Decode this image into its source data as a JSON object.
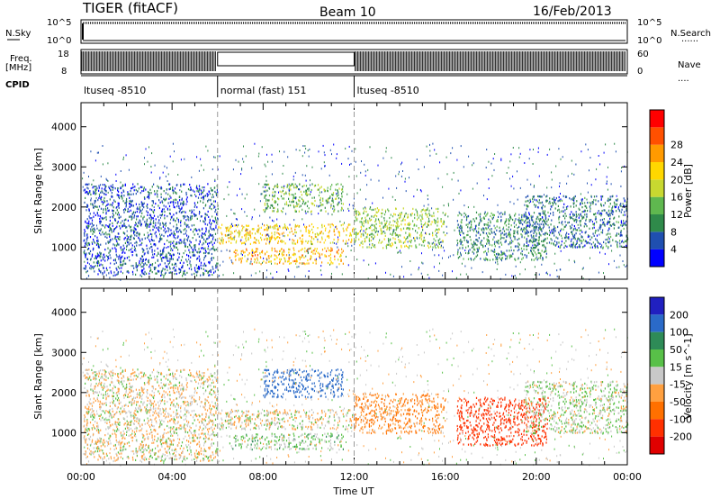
{
  "header": {
    "title": "TIGER (fitACF)",
    "beam": "Beam 10",
    "date": "16/Feb/2013"
  },
  "strip_labels": {
    "nsky": "N.Sky",
    "nsearch": "N.Search",
    "freq_l1": "Freq.",
    "freq_l2": "[MHz]",
    "nave": "Nave",
    "cpid": "CPID",
    "dots6": "......",
    "dots4": "...."
  },
  "strips": {
    "nsky_ticks": [
      "10^5",
      "10^0"
    ],
    "nsearch_ticks": [
      "10^5",
      "10^0"
    ],
    "freq_ticks": [
      "18",
      "8"
    ],
    "nave_ticks": [
      "60",
      "0"
    ]
  },
  "cpid_segments": [
    {
      "label": "ltuseq -8510",
      "start": 0,
      "end": 6
    },
    {
      "label": "normal (fast) 151",
      "start": 6,
      "end": 12
    },
    {
      "label": "ltuseq -8510",
      "start": 12,
      "end": 24
    }
  ],
  "x_axis": {
    "label": "Time UT",
    "ticks": [
      "00:00",
      "04:00",
      "08:00",
      "12:00",
      "16:00",
      "20:00",
      "00:00"
    ],
    "range_hours": [
      0,
      24
    ]
  },
  "y_axis": {
    "label": "Slant Range [km]",
    "ticks": [
      "1000",
      "2000",
      "3000",
      "4000"
    ],
    "range_km": [
      200,
      4600
    ]
  },
  "power_colorbar": {
    "label": "Power [dB]",
    "ticks": [
      "4",
      "8",
      "12",
      "16",
      "20",
      "24",
      "28"
    ],
    "colors": [
      "#0000ff",
      "#1f4fb0",
      "#2f8a4a",
      "#5fb84f",
      "#c8d830",
      "#ffd700",
      "#ff9a00",
      "#ff5000",
      "#ff0000"
    ]
  },
  "velocity_colorbar": {
    "label": "Velocity [m s^-1]",
    "ticks": [
      "200",
      "100",
      "50",
      "15",
      "-15",
      "-50",
      "-100",
      "-200"
    ],
    "colors": [
      "#2020c0",
      "#2a6ac8",
      "#2e8b57",
      "#58c048",
      "#c8c8c8",
      "#ffa040",
      "#ff7000",
      "#ff3000",
      "#e00000"
    ]
  },
  "chart_data": {
    "type": "heatmap",
    "title": "TIGER (fitACF)",
    "xlabel": "Time UT",
    "ylabel": "Slant Range [km]",
    "xlim": [
      0,
      24
    ],
    "ylim": [
      200,
      4600
    ],
    "panels": [
      "Power [dB]",
      "Velocity [m s^-1]"
    ],
    "regions": [
      {
        "t0": 0.1,
        "t1": 6.0,
        "r0": 300,
        "r1": 2600,
        "power": 6,
        "velocity": -10
      },
      {
        "t0": 6.0,
        "t1": 12.0,
        "r0": 1100,
        "r1": 1600,
        "power": 22,
        "velocity": -5
      },
      {
        "t0": 6.5,
        "t1": 11.5,
        "r0": 600,
        "r1": 1000,
        "power": 24,
        "velocity": 20
      },
      {
        "t0": 8.0,
        "t1": 11.5,
        "r0": 1900,
        "r1": 2600,
        "power": 14,
        "velocity": 150
      },
      {
        "t0": 12.0,
        "t1": 16.0,
        "r0": 1000,
        "r1": 2000,
        "power": 16,
        "velocity": -60
      },
      {
        "t0": 16.5,
        "t1": 20.5,
        "r0": 700,
        "r1": 1900,
        "power": 10,
        "velocity": -150
      },
      {
        "t0": 19.5,
        "t1": 24.0,
        "r0": 1000,
        "r1": 2300,
        "power": 8,
        "velocity": 10
      }
    ]
  }
}
